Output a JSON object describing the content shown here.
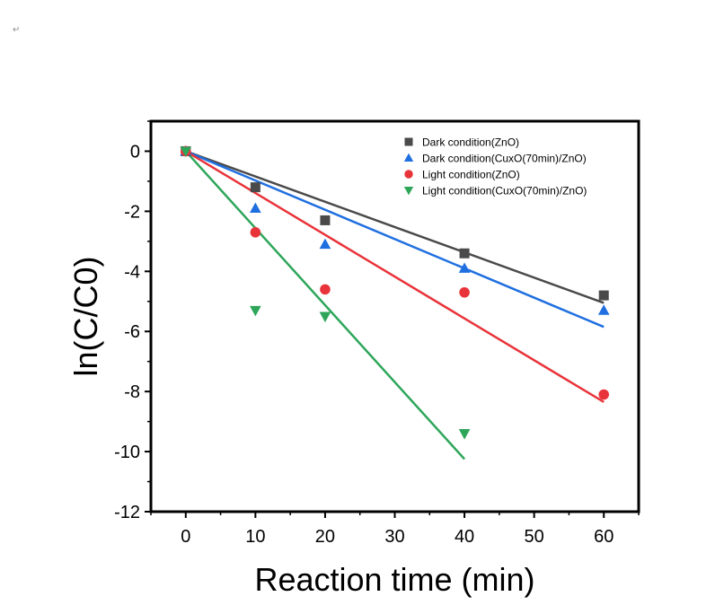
{
  "page": {
    "para_mark": "↵"
  },
  "chart_data": {
    "type": "scatter",
    "xlabel": "Reaction time (min)",
    "ylabel": "ln(C/C0)",
    "xlim": [
      -5,
      65
    ],
    "ylim": [
      -12,
      1
    ],
    "xticks": [
      0,
      10,
      20,
      30,
      40,
      50,
      60
    ],
    "yticks": [
      0,
      -2,
      -4,
      -6,
      -8,
      -10,
      -12
    ],
    "grid": false,
    "legend_position": "top-right",
    "series": [
      {
        "name": "Dark condition(ZnO)",
        "marker": "square",
        "color": "#4a4a4a",
        "x": [
          0,
          10,
          20,
          40,
          60
        ],
        "y": [
          0,
          -1.2,
          -2.3,
          -3.4,
          -4.8
        ],
        "fit": {
          "x": [
            0,
            60
          ],
          "y": [
            0,
            -5.05
          ]
        }
      },
      {
        "name": "Dark condition(CuxO(70min)/ZnO)",
        "marker": "triangle-up",
        "color": "#1f6fe0",
        "x": [
          0,
          10,
          20,
          40,
          60
        ],
        "y": [
          0,
          -1.9,
          -3.1,
          -3.9,
          -5.3
        ],
        "fit": {
          "x": [
            0,
            60
          ],
          "y": [
            0,
            -5.85
          ]
        }
      },
      {
        "name": "Light condition(ZnO)",
        "marker": "circle",
        "color": "#e8333a",
        "x": [
          0,
          10,
          20,
          40,
          60
        ],
        "y": [
          0,
          -2.7,
          -4.6,
          -4.7,
          -8.1
        ],
        "fit": {
          "x": [
            0,
            60
          ],
          "y": [
            0,
            -8.35
          ]
        }
      },
      {
        "name": "Light condition(CuxO(70min)/ZnO)",
        "marker": "triangle-down",
        "color": "#2ea65a",
        "x": [
          0,
          10,
          20,
          40
        ],
        "y": [
          0,
          -5.3,
          -5.5,
          -9.4
        ],
        "fit": {
          "x": [
            0,
            40
          ],
          "y": [
            0,
            -10.25
          ]
        }
      }
    ]
  }
}
